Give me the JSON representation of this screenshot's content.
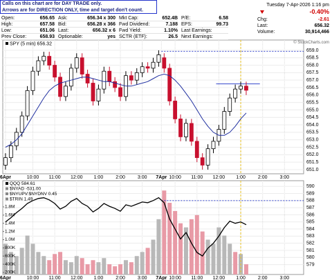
{
  "header": {
    "notice": [
      "Calls on this chart are for DAY TRADE only.",
      "Arrows are for DIRECTION ONLY, time and target don't count."
    ],
    "quote": [
      [
        {
          "label": "Open:",
          "value": 656.65
        },
        {
          "label": "Ask:",
          "value": "656.34 x 300"
        },
        {
          "label": "Mkt Cap:",
          "value": "652.4B"
        },
        {
          "label": "P/E:",
          "value": 6.58
        }
      ],
      [
        {
          "label": "High:",
          "value": 657.58
        },
        {
          "label": "Bid:",
          "value": "656.28 x 366"
        },
        {
          "label": "Fwd Dividend:",
          "value": 7.188
        },
        {
          "label": "EPS:",
          "value": 99.73
        }
      ],
      [
        {
          "label": "Low:",
          "value": 651.06
        },
        {
          "label": "Last:",
          "value": "656.32 x 6"
        },
        {
          "label": "Fwd Yield:",
          "value": "1.10%"
        },
        {
          "label": "Last Earnings:"
        }
      ],
      [
        {
          "label": "Prev Close:",
          "value": 658.93
        },
        {
          "label": "Optionable:",
          "value": "yes"
        },
        {
          "label": "SCTR (ETF):",
          "value": 26.5
        },
        {
          "label": "Next Earnings:"
        }
      ]
    ],
    "date": "Tuesday  7-Apr-2026  1:16 pm",
    "change_pct": "-0.40%",
    "stats": [
      {
        "label": "Chg:",
        "value": -2.61
      },
      {
        "label": "Last:",
        "value": 656.32
      },
      {
        "label": "Volume:",
        "value": "30,914,466"
      }
    ],
    "credit": "© StockCharts.com"
  },
  "chart_data": [
    {
      "type": "candlestick",
      "legend": "SPY (5 min) 656.32",
      "x": [
        -3,
        -2,
        -1,
        0,
        1,
        2,
        3,
        4,
        5,
        6,
        7,
        8,
        9,
        10,
        11,
        12,
        13,
        14,
        15,
        16,
        17,
        18,
        19,
        20,
        21,
        22,
        23,
        24,
        25,
        26,
        27,
        28,
        29,
        30,
        31,
        32,
        33,
        34,
        35,
        36,
        37,
        38,
        39,
        40,
        41
      ],
      "open": [
        651.3,
        651.8,
        652.6,
        653.5,
        654.6,
        656.3,
        657.6,
        658.3,
        658.6,
        658.0,
        657.2,
        655.9,
        656.6,
        657.8,
        658.5,
        657.4,
        656.8,
        655.6,
        656.4,
        657.6,
        656.9,
        656.5,
        655.9,
        657.3,
        657.0,
        657.5,
        657.9,
        657.8,
        658.2,
        658.5,
        657.8,
        655.6,
        654.4,
        653.2,
        654.1,
        652.9,
        651.8,
        651.3,
        652.4,
        652.9,
        653.7,
        654.9,
        655.8,
        656.4,
        656.6
      ],
      "high": [
        652.1,
        652.9,
        653.8,
        654.9,
        656.6,
        657.9,
        658.6,
        658.9,
        658.9,
        658.3,
        657.5,
        656.9,
        658.1,
        658.8,
        658.8,
        657.7,
        657.1,
        656.7,
        657.9,
        657.9,
        657.2,
        656.8,
        657.6,
        657.6,
        657.8,
        658.2,
        658.2,
        658.5,
        659.0,
        658.8,
        658.1,
        655.9,
        654.7,
        654.4,
        654.4,
        653.2,
        652.1,
        652.7,
        653.2,
        654.0,
        655.2,
        656.1,
        656.7,
        656.9,
        656.9
      ],
      "low": [
        651.0,
        651.5,
        652.3,
        653.2,
        654.3,
        656.0,
        657.3,
        658.0,
        657.7,
        656.9,
        655.6,
        655.6,
        656.3,
        657.5,
        657.1,
        656.5,
        655.3,
        655.3,
        656.1,
        656.6,
        656.2,
        655.6,
        655.6,
        656.7,
        656.7,
        657.2,
        657.5,
        657.5,
        657.9,
        657.5,
        655.3,
        654.1,
        652.9,
        652.9,
        652.6,
        651.5,
        651.0,
        651.0,
        652.1,
        652.6,
        653.4,
        654.6,
        655.5,
        656.1,
        656.0
      ],
      "close": [
        651.8,
        652.6,
        653.5,
        654.6,
        656.3,
        657.6,
        658.3,
        658.6,
        658.0,
        657.2,
        655.9,
        656.6,
        657.8,
        658.5,
        657.4,
        656.8,
        655.6,
        656.4,
        657.6,
        656.9,
        656.5,
        655.9,
        657.3,
        657.0,
        657.5,
        657.9,
        657.8,
        658.2,
        658.7,
        657.8,
        655.6,
        654.4,
        653.2,
        654.1,
        652.9,
        651.8,
        651.3,
        652.4,
        652.9,
        653.7,
        654.9,
        655.8,
        656.4,
        656.6,
        656.32
      ],
      "ma": [
        652.5,
        652.7,
        653.0,
        653.4,
        654.0,
        654.6,
        655.2,
        655.8,
        656.3,
        656.6,
        656.8,
        656.9,
        657.0,
        657.1,
        657.2,
        657.2,
        657.1,
        657.0,
        656.9,
        656.9,
        656.8,
        656.7,
        656.6,
        656.6,
        656.7,
        656.8,
        656.9,
        657.1,
        657.3,
        657.4,
        657.3,
        657.0,
        656.6,
        656.1,
        655.6,
        655.0,
        654.4,
        653.9,
        653.5,
        653.3,
        653.3,
        653.5,
        653.9,
        654.4,
        654.8
      ],
      "up_color": "#000000",
      "down_color": "#c8102e",
      "ma_color": "#1f2fa0",
      "hlines": [
        {
          "value": 658.93,
          "from": 25.5,
          "to": 51.5,
          "color": "#3344cc",
          "dash": true
        },
        {
          "value": 656.75,
          "from": 35.5,
          "to": 43.5,
          "color": "#3344cc",
          "dash": false
        }
      ],
      "vline": 40,
      "vline_color": "#e8c020",
      "xlim": [
        -3.5,
        51.5
      ],
      "xticks": [
        {
          "value": -3,
          "label": "6Apr"
        },
        {
          "value": 2,
          "label": "10:00"
        },
        {
          "value": 6,
          "label": "11:00"
        },
        {
          "value": 10,
          "label": "12:00"
        },
        {
          "value": 14,
          "label": "1:00"
        },
        {
          "value": 18,
          "label": "2:00"
        },
        {
          "value": 22,
          "label": "3:00"
        },
        {
          "value": 25.5,
          "label": "7Apr"
        },
        {
          "value": 28,
          "label": "10:00"
        },
        {
          "value": 32,
          "label": "11:00"
        },
        {
          "value": 36,
          "label": "12:00"
        },
        {
          "value": 40,
          "label": "1:00"
        },
        {
          "value": 44,
          "label": "2:00"
        },
        {
          "value": 48,
          "label": "3:00"
        }
      ],
      "ylim": [
        650.72,
        659.69
      ],
      "yticks": [
        {
          "value": 659,
          "label": "659.0"
        },
        {
          "value": 658.5,
          "label": "658.5"
        },
        {
          "value": 658,
          "label": "658.0"
        },
        {
          "value": 657.5,
          "label": "657.5"
        },
        {
          "value": 657,
          "label": "657.0"
        },
        {
          "value": 656.5,
          "label": "656.5"
        },
        {
          "value": 656,
          "label": "656.0"
        },
        {
          "value": 655.5,
          "label": "655.5"
        },
        {
          "value": 655,
          "label": "655.0"
        },
        {
          "value": 654.5,
          "label": "654.5"
        },
        {
          "value": 654,
          "label": "654.0"
        },
        {
          "value": 653.5,
          "label": "653.5"
        },
        {
          "value": 653,
          "label": "653.0"
        },
        {
          "value": 652.5,
          "label": "652.5"
        },
        {
          "value": 652,
          "label": "652.0"
        },
        {
          "value": 651.5,
          "label": "651.5"
        },
        {
          "value": 651,
          "label": "651.0"
        }
      ],
      "grid": true
    },
    {
      "type": "line-volume",
      "legends": [
        "QQQ 584.61",
        "$NYAD -531.00",
        "$NYUPV:$NYDNV 0.45",
        "$TRIN 1.49"
      ],
      "x": [
        -3,
        -2,
        -1,
        0,
        1,
        2,
        3,
        4,
        5,
        6,
        7,
        8,
        9,
        10,
        11,
        12,
        13,
        14,
        15,
        16,
        17,
        18,
        19,
        20,
        21,
        22,
        23,
        24,
        25,
        26,
        27,
        28,
        29,
        30,
        31,
        32,
        33,
        34,
        35,
        36,
        37,
        38,
        39,
        40,
        41
      ],
      "values": [
        585.0,
        585.6,
        586.3,
        586.9,
        587.6,
        588.0,
        588.3,
        588.4,
        588.1,
        587.6,
        586.8,
        587.2,
        587.9,
        588.3,
        587.6,
        587.2,
        586.4,
        586.9,
        587.6,
        587.2,
        586.9,
        586.5,
        587.4,
        587.2,
        587.5,
        587.8,
        587.7,
        588.0,
        588.4,
        587.7,
        585.4,
        584.0,
        582.6,
        583.5,
        582.0,
        580.7,
        580.2,
        581.3,
        582.0,
        583.0,
        584.2,
        585.1,
        584.8,
        585.0,
        584.61
      ],
      "volume": [
        900000,
        700000,
        600000,
        800000,
        1100000,
        900000,
        700000,
        600000,
        500000,
        650000,
        700000,
        500000,
        450000,
        600000,
        550000,
        400000,
        500000,
        450000,
        550000,
        400000,
        350000,
        400000,
        500000,
        450000,
        600000,
        700000,
        800000,
        1000000,
        1500000,
        2200000,
        1900000,
        1700000,
        1400000,
        1300000,
        1500000,
        1600000,
        1200000,
        1000000,
        900000,
        1300000,
        1100000,
        900000,
        700000,
        650000,
        400000
      ],
      "line_color": "#000000",
      "up_color": "#b8b8b8",
      "down_color": "#e89aa6",
      "hlines": [
        {
          "value": 588,
          "from": 25.5,
          "to": 51.5,
          "color": "#3344cc",
          "dash": true
        }
      ],
      "vline": 40,
      "vline_color": "#e8c020",
      "xlim": [
        -3.5,
        51.5
      ],
      "xticks": [
        {
          "value": -3,
          "label": "6Apr"
        },
        {
          "value": 2,
          "label": "10:00"
        },
        {
          "value": 6,
          "label": "11:00"
        },
        {
          "value": 10,
          "label": "12:00"
        },
        {
          "value": 14,
          "label": "1:00"
        },
        {
          "value": 18,
          "label": "2:00"
        },
        {
          "value": 22,
          "label": "3:00"
        },
        {
          "value": 25.5,
          "label": "7Apr"
        },
        {
          "value": 28,
          "label": "10:00"
        },
        {
          "value": 32,
          "label": "11:00"
        },
        {
          "value": 36,
          "label": "12:00"
        },
        {
          "value": 40,
          "label": "1:00"
        },
        {
          "value": 44,
          "label": "2:00"
        },
        {
          "value": 48,
          "label": "3:00"
        }
      ],
      "ylim": [
        577.6,
        590.8
      ],
      "yticks": [
        590,
        589,
        588,
        587,
        586,
        585,
        584,
        583,
        582,
        581,
        580,
        579
      ],
      "vlim": [
        150000,
        2440000
      ],
      "vticks": [
        {
          "value": 1800000,
          "label": "1.8M"
        },
        {
          "value": 1600000,
          "label": "1.6M"
        },
        {
          "value": 1400000,
          "label": "1.4M"
        },
        {
          "value": 1200000,
          "label": "1.2M"
        },
        {
          "value": 1000000,
          "label": "1.0M"
        },
        {
          "value": 800000,
          "label": "800K"
        },
        {
          "value": 600000,
          "label": "600K"
        },
        {
          "value": 400000,
          "label": "400K"
        },
        {
          "value": 200000,
          "label": "200K"
        }
      ],
      "grid": true
    }
  ]
}
